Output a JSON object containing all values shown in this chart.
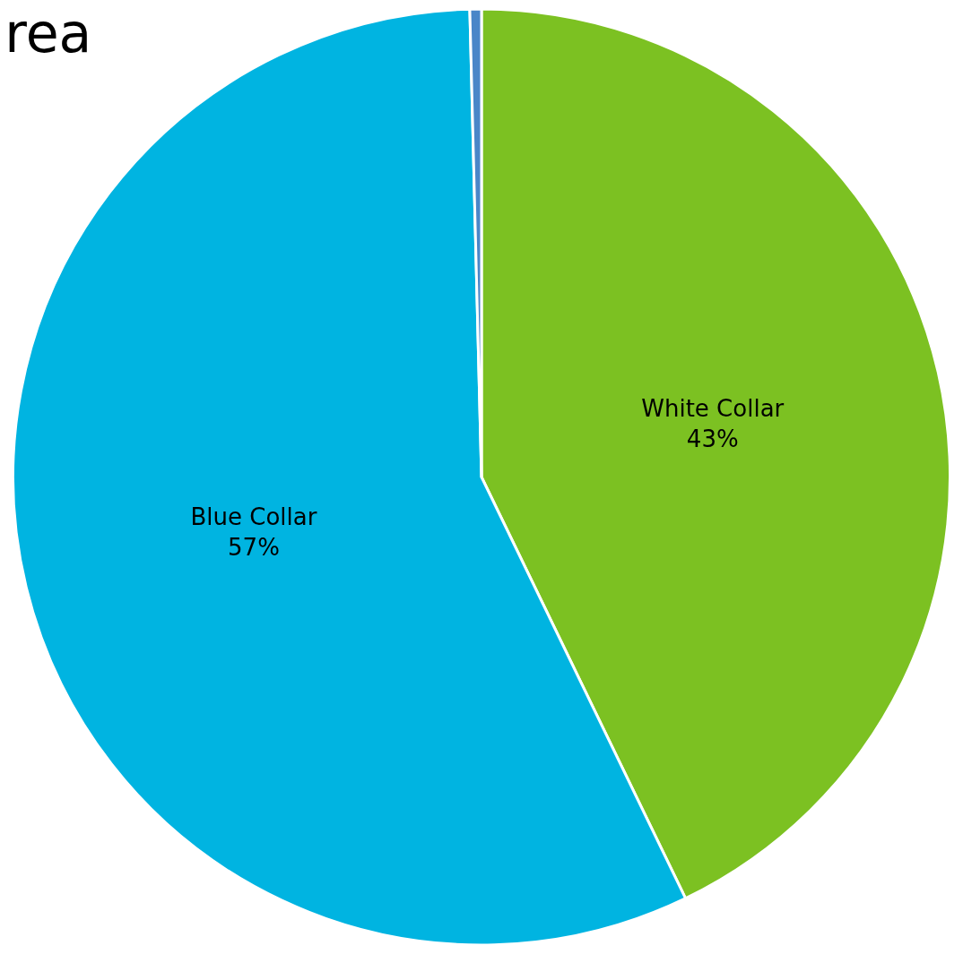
{
  "chart_data": {
    "type": "pie",
    "title": "rea",
    "categories": [
      "White Collar",
      "Blue Collar",
      null
    ],
    "values": [
      43,
      57,
      0.4
    ],
    "value_labels": [
      "43%",
      "57%",
      null
    ],
    "colors": [
      "#7cc122",
      "#00b4e1",
      "#4a86c8"
    ]
  }
}
